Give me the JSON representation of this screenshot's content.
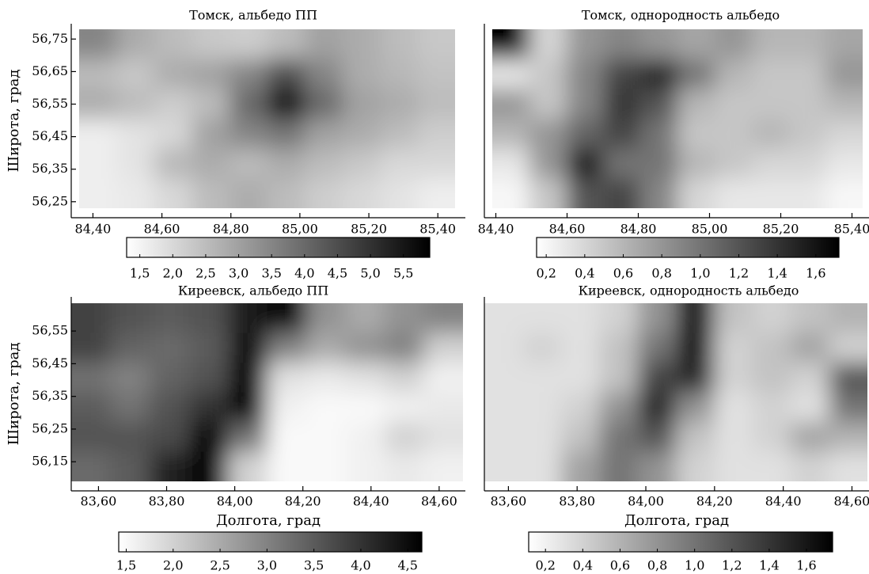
{
  "chart_data": [
    {
      "type": "heatmap",
      "title": "Томск, альбедо ПП",
      "ylabel": "Широта, град",
      "xlim": [
        84.36,
        85.45
      ],
      "ylim": [
        56.23,
        56.78
      ],
      "xticks": [
        {
          "value": 84.4,
          "label": "84,40"
        },
        {
          "value": 84.6,
          "label": "84,60"
        },
        {
          "value": 84.8,
          "label": "84,80"
        },
        {
          "value": 85.0,
          "label": "85,00"
        },
        {
          "value": 85.2,
          "label": "85,20"
        },
        {
          "value": 85.4,
          "label": "85,40"
        }
      ],
      "yticks": [
        {
          "value": 56.75,
          "label": "56,75"
        },
        {
          "value": 56.65,
          "label": "56,65"
        },
        {
          "value": 56.55,
          "label": "56,55"
        },
        {
          "value": 56.45,
          "label": "56,45"
        },
        {
          "value": 56.35,
          "label": "56,35"
        },
        {
          "value": 56.25,
          "label": "56,25"
        }
      ],
      "clim": [
        1.3,
        5.9
      ],
      "cticks": [
        {
          "value": 1.5,
          "label": "1,5"
        },
        {
          "value": 2.0,
          "label": "2,0"
        },
        {
          "value": 2.5,
          "label": "2,5"
        },
        {
          "value": 3.0,
          "label": "3,0"
        },
        {
          "value": 3.5,
          "label": "3,5"
        },
        {
          "value": 4.0,
          "label": "4,0"
        },
        {
          "value": 4.5,
          "label": "4,5"
        },
        {
          "value": 5.0,
          "label": "5,0"
        },
        {
          "value": 5.5,
          "label": "5,5"
        }
      ],
      "z": [
        [
          3.5,
          2.8,
          2.5,
          2.3,
          2.2,
          2.5,
          3.0,
          2.8,
          2.5,
          2.3
        ],
        [
          2.5,
          2.3,
          2.8,
          3.0,
          3.5,
          4.5,
          3.5,
          2.8,
          2.6,
          2.4
        ],
        [
          2.8,
          2.5,
          2.2,
          2.5,
          4.0,
          5.8,
          4.0,
          3.0,
          2.8,
          2.5
        ],
        [
          1.6,
          1.8,
          2.0,
          3.0,
          3.5,
          3.8,
          3.0,
          2.8,
          2.5,
          2.2
        ],
        [
          1.6,
          1.8,
          2.6,
          2.8,
          2.5,
          2.8,
          2.5,
          2.3,
          2.0,
          2.0
        ],
        [
          1.6,
          1.7,
          2.0,
          2.5,
          2.8,
          2.5,
          2.2,
          2.0,
          1.8,
          1.6
        ]
      ]
    },
    {
      "type": "heatmap",
      "title": "Томск, однородность альбедо",
      "xlim": [
        84.39,
        85.43
      ],
      "ylim": [
        56.23,
        56.78
      ],
      "xticks": [
        {
          "value": 84.4,
          "label": "84,40"
        },
        {
          "value": 84.6,
          "label": "84,60"
        },
        {
          "value": 84.8,
          "label": "84,80"
        },
        {
          "value": 85.0,
          "label": "85,00"
        },
        {
          "value": 85.2,
          "label": "85,20"
        },
        {
          "value": 85.4,
          "label": "85,40"
        }
      ],
      "clim": [
        0.15,
        1.72
      ],
      "cticks": [
        {
          "value": 0.2,
          "label": "0,2"
        },
        {
          "value": 0.4,
          "label": "0,4"
        },
        {
          "value": 0.6,
          "label": "0,6"
        },
        {
          "value": 0.8,
          "label": "0,8"
        },
        {
          "value": 1.0,
          "label": "1,0"
        },
        {
          "value": 1.2,
          "label": "1,2"
        },
        {
          "value": 1.4,
          "label": "1,4"
        },
        {
          "value": 1.6,
          "label": "1,6"
        }
      ],
      "z": [
        [
          1.7,
          0.4,
          0.8,
          0.9,
          0.8,
          0.7,
          0.8,
          0.6,
          0.6,
          0.7
        ],
        [
          0.3,
          0.5,
          0.9,
          1.3,
          1.5,
          1.0,
          0.6,
          0.5,
          0.5,
          0.8
        ],
        [
          0.8,
          0.5,
          0.9,
          1.4,
          1.2,
          0.6,
          0.5,
          0.5,
          0.5,
          0.6
        ],
        [
          0.6,
          0.8,
          1.1,
          1.3,
          1.0,
          0.5,
          0.5,
          0.6,
          0.5,
          0.4
        ],
        [
          0.3,
          0.8,
          1.6,
          1.0,
          1.0,
          0.6,
          0.5,
          0.4,
          0.4,
          0.3
        ],
        [
          0.2,
          0.5,
          1.2,
          1.3,
          0.9,
          0.4,
          0.3,
          0.3,
          0.3,
          0.2
        ]
      ]
    },
    {
      "type": "heatmap",
      "title": "Киреевск, альбедо ПП",
      "ylabel": "Широта, град",
      "xlabel": "Долгота, град",
      "xlim": [
        83.52,
        84.67
      ],
      "ylim": [
        56.09,
        56.635
      ],
      "xticks": [
        {
          "value": 83.6,
          "label": "83,60"
        },
        {
          "value": 83.8,
          "label": "83,80"
        },
        {
          "value": 84.0,
          "label": "84,00"
        },
        {
          "value": 84.2,
          "label": "84,20"
        },
        {
          "value": 84.4,
          "label": "84,40"
        },
        {
          "value": 84.6,
          "label": "84,60"
        }
      ],
      "yticks": [
        {
          "value": 56.55,
          "label": "56,55"
        },
        {
          "value": 56.45,
          "label": "56,45"
        },
        {
          "value": 56.35,
          "label": "56,35"
        },
        {
          "value": 56.25,
          "label": "56,25"
        },
        {
          "value": 56.15,
          "label": "56,15"
        }
      ],
      "clim": [
        1.42,
        4.65
      ],
      "cticks": [
        {
          "value": 1.5,
          "label": "1,5"
        },
        {
          "value": 2.0,
          "label": "2,0"
        },
        {
          "value": 2.5,
          "label": "2,5"
        },
        {
          "value": 3.0,
          "label": "3,0"
        },
        {
          "value": 3.5,
          "label": "3,5"
        },
        {
          "value": 4.0,
          "label": "4,0"
        },
        {
          "value": 4.5,
          "label": "4,5"
        }
      ],
      "z": [
        [
          3.8,
          3.6,
          3.5,
          3.6,
          4.3,
          4.6,
          2.8,
          2.5,
          2.8,
          3.0
        ],
        [
          3.8,
          3.4,
          3.3,
          3.5,
          4.5,
          3.0,
          2.5,
          2.8,
          3.0,
          2.0
        ],
        [
          3.2,
          3.0,
          3.4,
          3.6,
          4.6,
          1.8,
          1.7,
          1.8,
          2.0,
          1.6
        ],
        [
          3.5,
          3.2,
          3.6,
          4.0,
          4.6,
          1.6,
          1.5,
          1.5,
          1.6,
          1.7
        ],
        [
          3.6,
          3.6,
          3.7,
          4.6,
          3.2,
          1.5,
          1.5,
          1.6,
          2.0,
          1.8
        ],
        [
          3.3,
          3.5,
          4.2,
          4.6,
          2.0,
          1.5,
          1.5,
          1.6,
          1.7,
          1.6
        ]
      ]
    },
    {
      "type": "heatmap",
      "title": "Киреевск, однородность альбедо",
      "xlabel": "Долгота, град",
      "xlim": [
        83.53,
        84.645
      ],
      "ylim": [
        56.09,
        56.635
      ],
      "xticks": [
        {
          "value": 83.6,
          "label": "83,60"
        },
        {
          "value": 83.8,
          "label": "83,80"
        },
        {
          "value": 84.0,
          "label": "84,00"
        },
        {
          "value": 84.2,
          "label": "84,20"
        },
        {
          "value": 84.4,
          "label": "84,40"
        },
        {
          "value": 84.6,
          "label": "84,60"
        }
      ],
      "clim": [
        0.11,
        1.74
      ],
      "cticks": [
        {
          "value": 0.2,
          "label": "0,2"
        },
        {
          "value": 0.4,
          "label": "0,4"
        },
        {
          "value": 0.6,
          "label": "0,6"
        },
        {
          "value": 0.8,
          "label": "0,8"
        },
        {
          "value": 1.0,
          "label": "1,0"
        },
        {
          "value": 1.2,
          "label": "1,2"
        },
        {
          "value": 1.4,
          "label": "1,4"
        },
        {
          "value": 1.6,
          "label": "1,6"
        }
      ],
      "z": [
        [
          0.3,
          0.3,
          0.3,
          0.4,
          0.8,
          1.6,
          0.5,
          0.4,
          0.5,
          0.6
        ],
        [
          0.3,
          0.4,
          0.3,
          0.5,
          1.0,
          1.6,
          0.4,
          0.5,
          0.7,
          0.4
        ],
        [
          0.3,
          0.3,
          0.3,
          0.5,
          1.3,
          1.5,
          0.4,
          0.5,
          0.4,
          1.2
        ],
        [
          0.3,
          0.3,
          0.4,
          0.8,
          1.5,
          0.8,
          0.3,
          0.4,
          0.3,
          1.0
        ],
        [
          0.3,
          0.3,
          0.5,
          1.0,
          1.2,
          0.5,
          0.3,
          0.4,
          0.7,
          0.6
        ],
        [
          0.3,
          0.3,
          0.7,
          1.0,
          0.8,
          0.4,
          0.3,
          0.3,
          0.4,
          0.3
        ]
      ]
    }
  ]
}
